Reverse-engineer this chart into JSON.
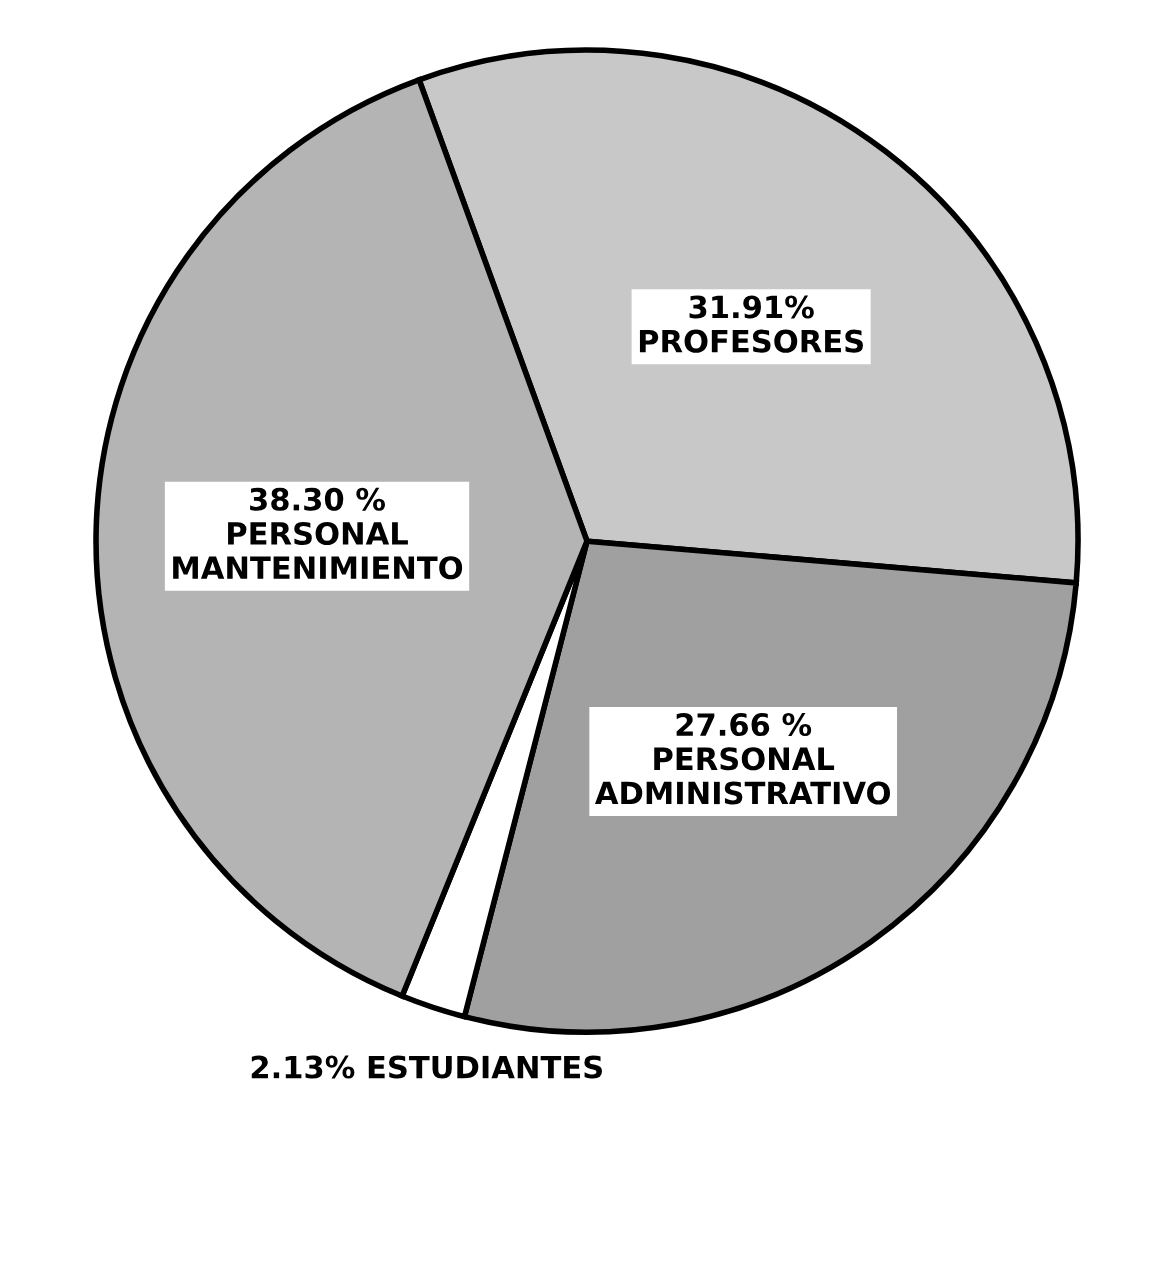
{
  "chart_data": {
    "type": "pie",
    "categories": [
      "PROFESORES",
      "PERSONAL ADMINISTRATIVO",
      "ESTUDIANTES",
      "PERSONAL MANTENIMIENTO"
    ],
    "values": [
      31.91,
      27.66,
      2.13,
      38.3
    ],
    "value_labels": [
      "31.91%",
      "27.66 %",
      "2.13%",
      "38.30 %"
    ],
    "colors": [
      "#c8c8c8",
      "#a0a0a0",
      "#ffffff",
      "#b4b4b4"
    ]
  }
}
